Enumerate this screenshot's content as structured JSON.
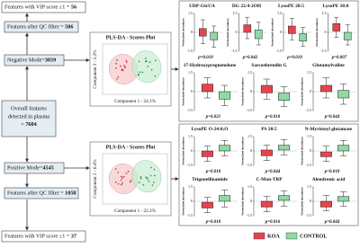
{
  "flow": {
    "neg_vip": {
      "text": "Features with VIP score ≥1 = ",
      "count": 56
    },
    "neg_qc": {
      "text": "Features  after QC filter = ",
      "count": 586
    },
    "negative": {
      "text": "Negative Mode=",
      "count": 3059
    },
    "overall": {
      "lines": [
        "Overall features",
        "detected in plasma"
      ],
      "text": "= ",
      "count": 7604
    },
    "positive": {
      "text": "Positive Mode=",
      "count": 4545
    },
    "pos_qc": {
      "text": "Features  after QC filter = ",
      "count": 1058
    },
    "pos_vip": {
      "text": "Features with VIP score ≥1 = ",
      "count": 37
    }
  },
  "pls": [
    {
      "title": "PLS-DA - Scores Plot",
      "x_label": "Component 1 - 24.1%",
      "y_label": "Component 2 - 5.2%"
    },
    {
      "title": "PLS-DA - Scores Plot",
      "x_label": "Component 1 - 22.2%",
      "y_label": "Component 2 - 6.4%"
    }
  ],
  "y_axis_label": "Normalized abundance",
  "y_ticks": [
    1.5,
    0,
    -1.5
  ],
  "panels": [
    {
      "title": "UDP-GlcUA",
      "p": "p=0.018",
      "koa": [
        -0.9,
        -0.3,
        0.3,
        1.0
      ],
      "control": [
        -1.2,
        -0.6,
        0.0,
        0.5
      ]
    },
    {
      "title": "DG 22:4-2OH",
      "p": "p=0.042",
      "koa": [
        -0.5,
        0.0,
        0.6,
        1.2
      ],
      "control": [
        -1.0,
        -0.5,
        0.2,
        0.8
      ]
    },
    {
      "title": "LysoPE 20:5",
      "p": "p=0.018",
      "koa": [
        -0.6,
        -0.1,
        0.5,
        1.1
      ],
      "control": [
        -1.1,
        -0.7,
        -0.1,
        0.4
      ]
    },
    {
      "title": "LysoPE 18:0",
      "p": "p=0.007",
      "koa": [
        -0.4,
        0.1,
        0.7,
        1.2
      ],
      "control": [
        -1.0,
        -0.6,
        0.0,
        0.6
      ]
    },
    {
      "title": "17-Hydroxypregnenolone",
      "p": "p=0.021",
      "koa": [
        -0.5,
        0.0,
        0.6,
        1.1
      ],
      "control": [
        -1.1,
        -0.6,
        0.0,
        0.5
      ]
    },
    {
      "title": "Sarcoehrendin G",
      "p": "p=0.018",
      "koa": [
        -0.6,
        -0.1,
        0.5,
        1.0
      ],
      "control": [
        -1.2,
        -0.7,
        -0.1,
        0.4
      ]
    },
    {
      "title": "Glutamylvaline",
      "p": "p=0.044",
      "koa": [
        -0.5,
        0.0,
        0.5,
        1.1
      ],
      "control": [
        -1.0,
        -0.5,
        0.1,
        0.6
      ]
    },
    {
      "title": "LysoPE O-24:0;O",
      "p": "p=0.018",
      "koa": [
        -1.1,
        -0.6,
        0.0,
        0.5
      ],
      "control": [
        -0.5,
        0.0,
        0.6,
        1.1
      ]
    },
    {
      "title": "PS 20:5",
      "p": "p=0.044",
      "koa": [
        -1.0,
        -0.5,
        0.1,
        0.6
      ],
      "control": [
        -0.4,
        0.1,
        0.6,
        1.2
      ]
    },
    {
      "title": "N-Myristoyl glutamate",
      "p": "p=0.018",
      "koa": [
        -1.1,
        -0.6,
        -0.1,
        0.5
      ],
      "control": [
        -0.5,
        0.0,
        0.6,
        1.1
      ]
    },
    {
      "title": "Trigonellinamide",
      "p": "p=0.018",
      "koa": [
        -1.2,
        -0.7,
        -0.1,
        0.4
      ],
      "control": [
        -0.6,
        0.0,
        0.6,
        1.2
      ]
    },
    {
      "title": "C-Man-TRP",
      "p": "p=0.016",
      "koa": [
        -1.1,
        -0.6,
        0.0,
        0.5
      ],
      "control": [
        -0.5,
        0.1,
        0.6,
        1.1
      ]
    },
    {
      "title": "Alendronic acid",
      "p": "p=0.044",
      "koa": [
        -1.0,
        -0.6,
        0.0,
        0.6
      ],
      "control": [
        -0.5,
        0.0,
        0.5,
        1.0
      ]
    }
  ],
  "legend": {
    "koa": "KOA",
    "control": "CONTROL"
  }
}
